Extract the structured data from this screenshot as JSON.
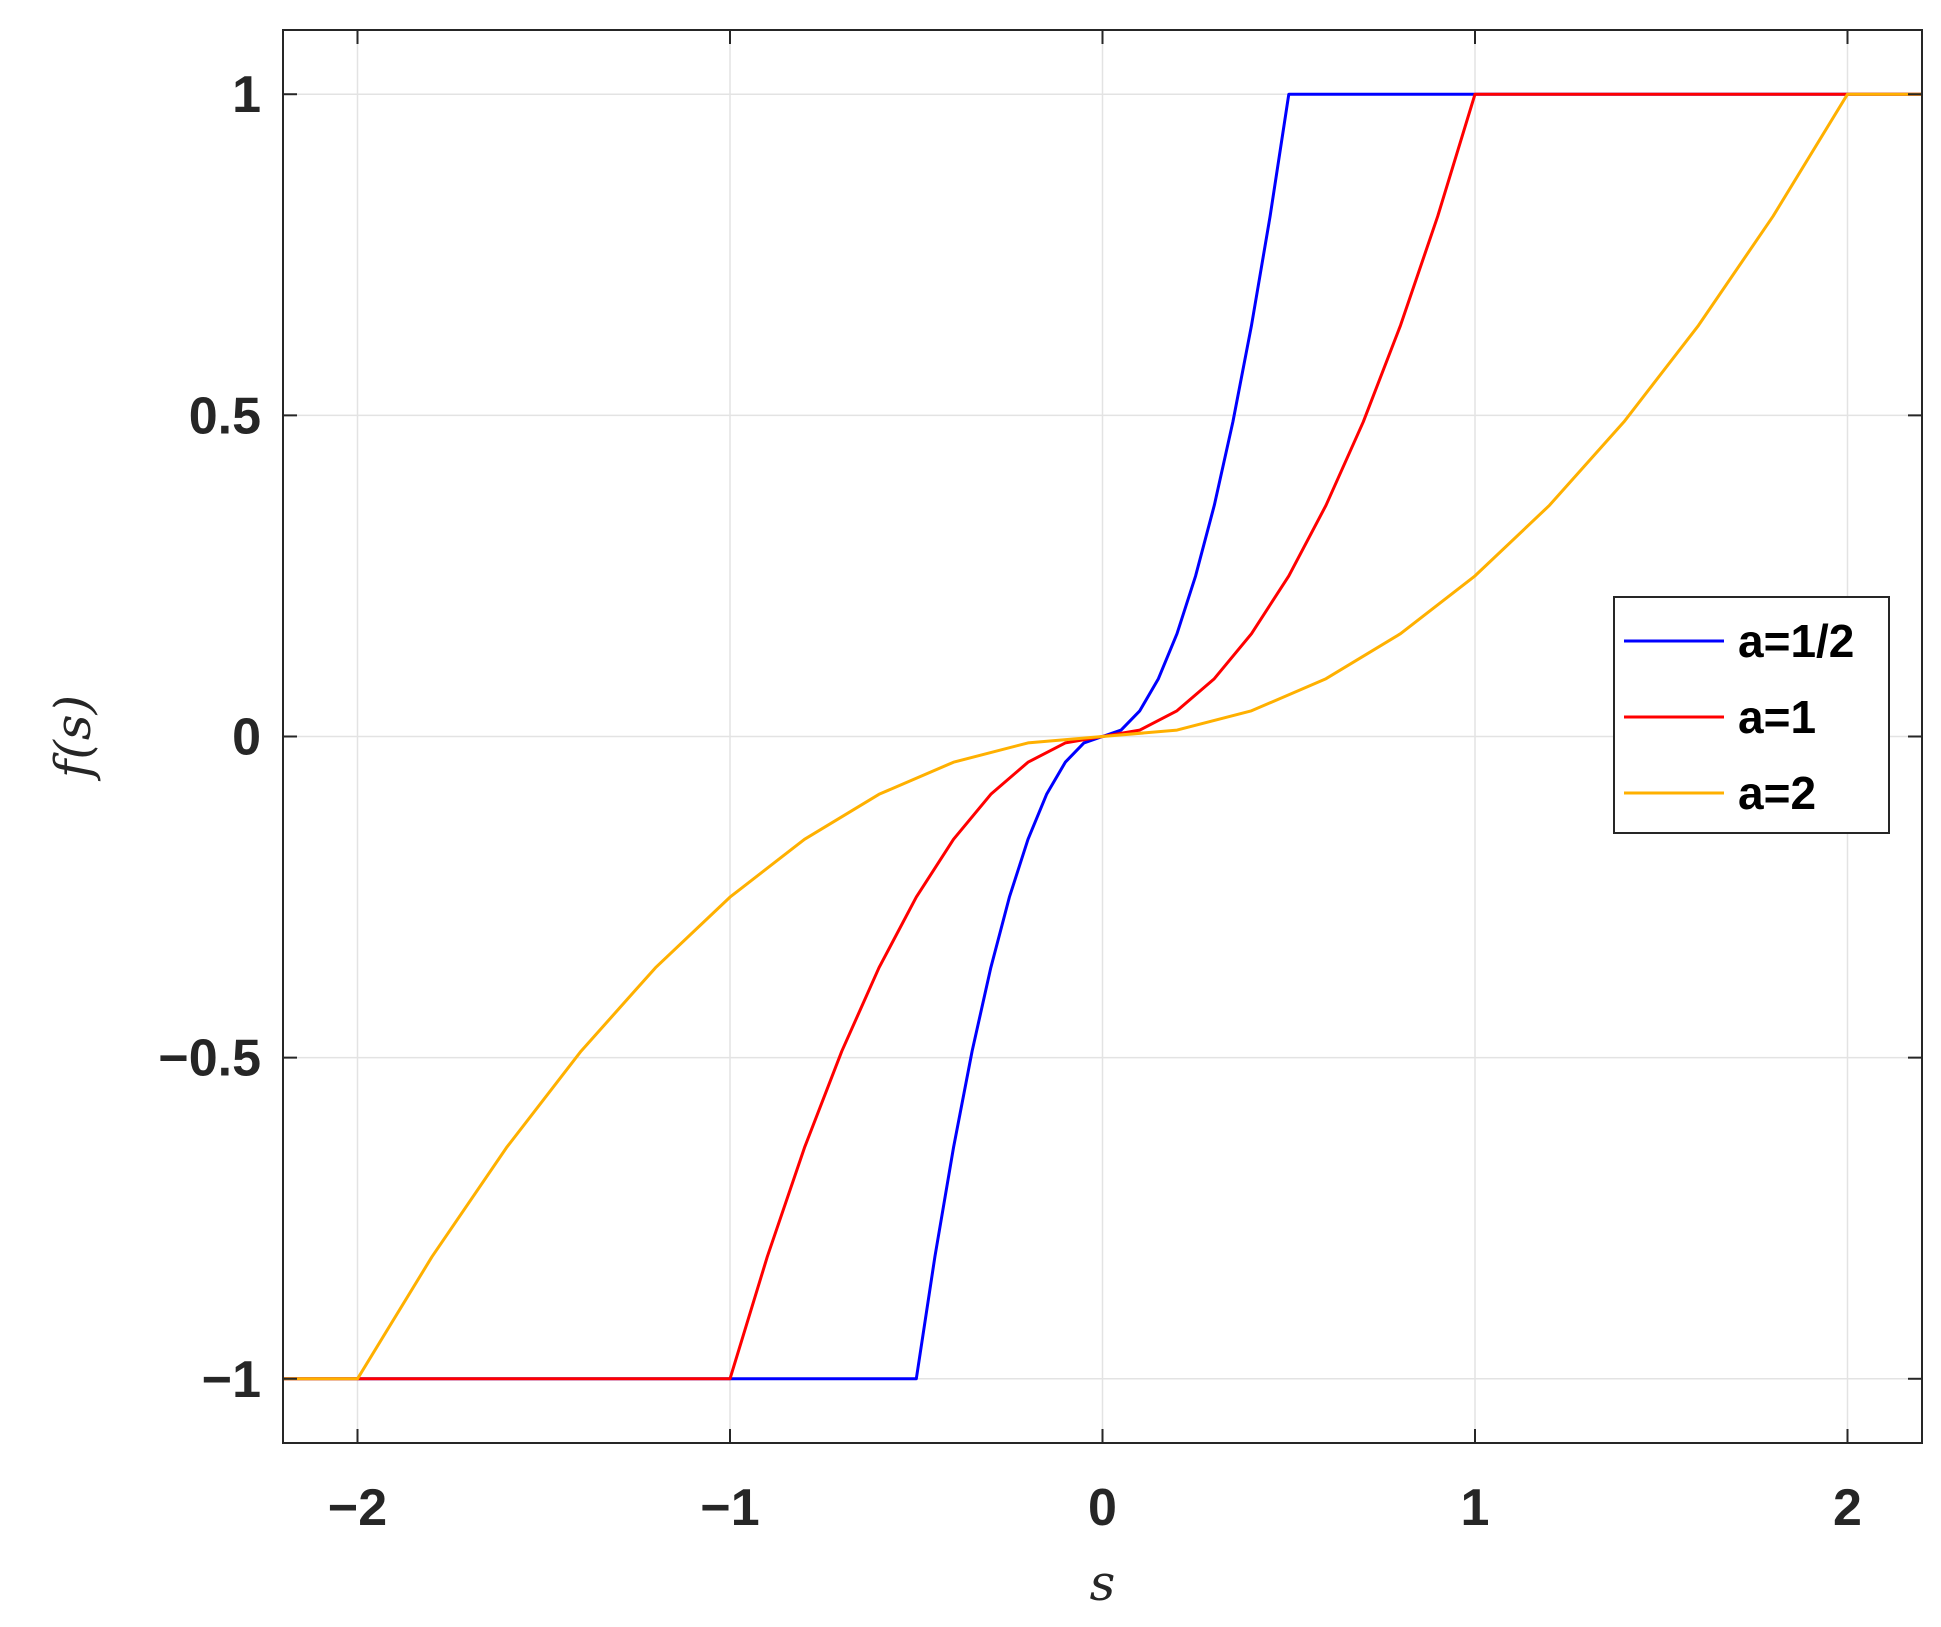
{
  "chart_data": {
    "type": "line",
    "xlabel": "s",
    "ylabel": "f(s)",
    "xlim": [
      -2.2,
      2.2
    ],
    "ylim": [
      -1.1,
      1.1
    ],
    "x_ticks": [
      -2,
      -1,
      0,
      1,
      2
    ],
    "x_tick_labels": [
      "−2",
      "−1",
      "0",
      "1",
      "2"
    ],
    "y_ticks": [
      -1,
      -0.5,
      0,
      0.5,
      1
    ],
    "y_tick_labels": [
      "−1",
      "−0.5",
      "0",
      "0.5",
      "1"
    ],
    "grid": true,
    "legend_position": "right",
    "series": [
      {
        "name": "a=1/2",
        "color": "#0000ff",
        "x": [
          -2.2,
          -0.5,
          -0.45,
          -0.4,
          -0.35,
          -0.3,
          -0.25,
          -0.2,
          -0.15,
          -0.1,
          -0.05,
          0,
          0.05,
          0.1,
          0.15,
          0.2,
          0.25,
          0.3,
          0.35,
          0.4,
          0.45,
          0.5,
          2.2
        ],
        "y": [
          -1,
          -1,
          -0.81,
          -0.64,
          -0.49,
          -0.36,
          -0.25,
          -0.16,
          -0.09,
          -0.04,
          -0.01,
          0,
          0.01,
          0.04,
          0.09,
          0.16,
          0.25,
          0.36,
          0.49,
          0.64,
          0.81,
          1,
          1
        ]
      },
      {
        "name": "a=1",
        "color": "#ff0000",
        "x": [
          -2.2,
          -1,
          -0.9,
          -0.8,
          -0.7,
          -0.6,
          -0.5,
          -0.4,
          -0.3,
          -0.2,
          -0.1,
          0,
          0.1,
          0.2,
          0.3,
          0.4,
          0.5,
          0.6,
          0.7,
          0.8,
          0.9,
          1,
          2.2
        ],
        "y": [
          -1,
          -1,
          -0.81,
          -0.64,
          -0.49,
          -0.36,
          -0.25,
          -0.16,
          -0.09,
          -0.04,
          -0.01,
          0,
          0.01,
          0.04,
          0.09,
          0.16,
          0.25,
          0.36,
          0.49,
          0.64,
          0.81,
          1,
          1
        ]
      },
      {
        "name": "a=2",
        "color": "#ffb000",
        "x": [
          -2.2,
          -2,
          -1.8,
          -1.6,
          -1.4,
          -1.2,
          -1,
          -0.8,
          -0.6,
          -0.4,
          -0.2,
          0,
          0.2,
          0.4,
          0.6,
          0.8,
          1,
          1.2,
          1.4,
          1.6,
          1.8,
          2,
          2.2
        ],
        "y": [
          -1,
          -1,
          -0.81,
          -0.64,
          -0.49,
          -0.36,
          -0.25,
          -0.16,
          -0.09,
          -0.04,
          -0.01,
          0,
          0.01,
          0.04,
          0.09,
          0.16,
          0.25,
          0.36,
          0.49,
          0.64,
          0.81,
          1,
          1
        ]
      }
    ]
  }
}
